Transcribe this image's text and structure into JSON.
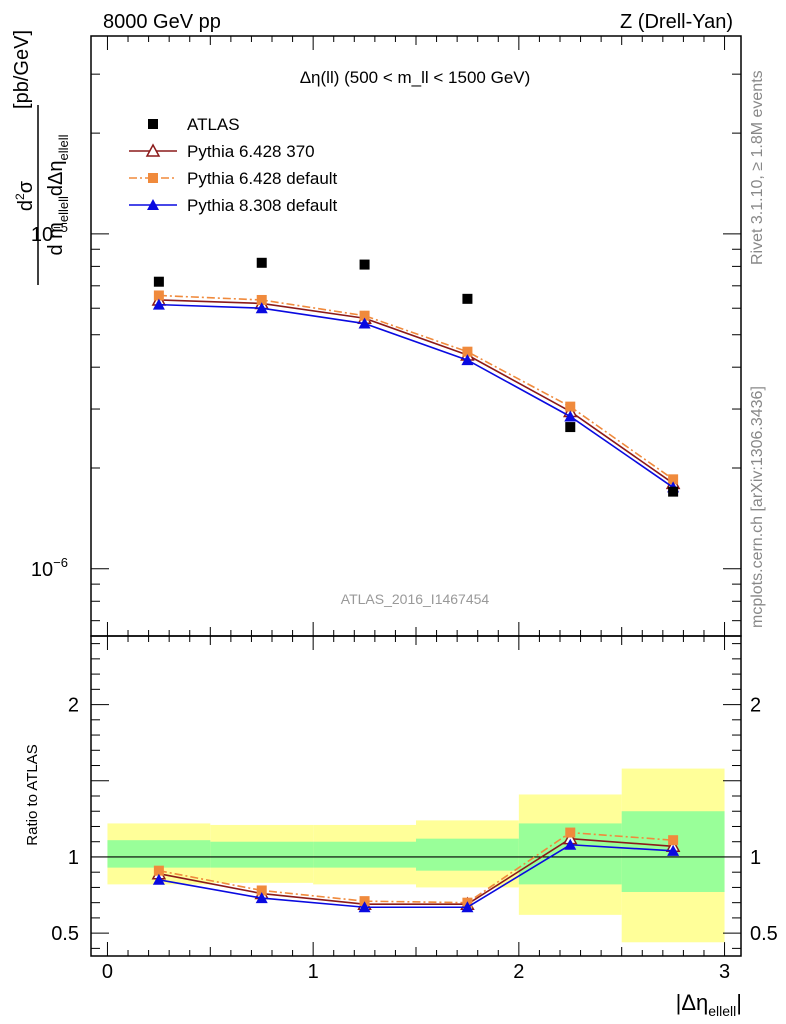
{
  "header": {
    "left": "8000 GeV pp",
    "right": "Z (Drell-Yan)"
  },
  "side_labels": {
    "rivet": "Rivet 3.1.10, ≥ 1.8M events",
    "mcplots": "mcplots.cern.ch [arXiv:1306.3436]"
  },
  "chart_data": {
    "type": "line",
    "title": "Δη(ll) (500 < m_ll < 1500 GeV)",
    "analysis_label": "ATLAS_2016_I1467454",
    "xlabel": "|Δη_ellell|",
    "ylabel": "d²σ / d m_ellell dΔη_ellell [pb/GeV]",
    "ratio_ylabel": "Ratio to ATLAS",
    "xlim": [
      -0.08,
      3.08
    ],
    "ylim": [
      6.3e-07,
      3.9e-05
    ],
    "yscale": "log",
    "ratio_ylim": [
      0.35,
      2.45
    ],
    "x_ticks": [
      "0",
      "1",
      "2",
      "3"
    ],
    "y_ticks": [
      "10^-5",
      "10^-6"
    ],
    "ratio_ticks": [
      "2",
      "1",
      "0.5"
    ],
    "legend_position": "top-left",
    "x": [
      0.25,
      0.75,
      1.25,
      1.75,
      2.25,
      2.75
    ],
    "bin_edges": [
      0,
      0.5,
      1.0,
      1.5,
      2.0,
      2.5,
      3.0
    ],
    "data_series": {
      "name": "ATLAS",
      "color": "#000000",
      "values": [
        7.2e-06,
        8.2e-06,
        8.1e-06,
        6.4e-06,
        2.65e-06,
        1.7e-06
      ]
    },
    "series": [
      {
        "name": "Pythia 6.428 370",
        "color": "#8b1a1a",
        "marker": "open-triangle",
        "dash": "solid",
        "values": [
          6.35e-06,
          6.2e-06,
          5.6e-06,
          4.35e-06,
          2.95e-06,
          1.8e-06
        ],
        "ratio": [
          0.89,
          0.76,
          0.69,
          0.69,
          1.12,
          1.07
        ]
      },
      {
        "name": "Pythia 6.428 default",
        "color": "#f08a3c",
        "marker": "filled-square",
        "dash": "dashdot",
        "values": [
          6.55e-06,
          6.35e-06,
          5.7e-06,
          4.45e-06,
          3.05e-06,
          1.85e-06
        ],
        "ratio": [
          0.91,
          0.78,
          0.71,
          0.7,
          1.16,
          1.11
        ]
      },
      {
        "name": "Pythia 8.308 default",
        "color": "#0a0ae0",
        "marker": "filled-triangle",
        "dash": "solid",
        "values": [
          6.15e-06,
          6e-06,
          5.4e-06,
          4.2e-06,
          2.85e-06,
          1.75e-06
        ],
        "ratio": [
          0.85,
          0.73,
          0.67,
          0.67,
          1.08,
          1.04
        ]
      }
    ],
    "uncertainty_bands": {
      "inner_color": "#99ff99",
      "outer_color": "#ffff99",
      "inner": [
        [
          0.93,
          1.11
        ],
        [
          0.93,
          1.1
        ],
        [
          0.93,
          1.1
        ],
        [
          0.91,
          1.12
        ],
        [
          0.82,
          1.22
        ],
        [
          0.77,
          1.3
        ]
      ],
      "outer": [
        [
          0.82,
          1.22
        ],
        [
          0.83,
          1.21
        ],
        [
          0.82,
          1.21
        ],
        [
          0.8,
          1.24
        ],
        [
          0.62,
          1.41
        ],
        [
          0.44,
          1.58
        ]
      ]
    }
  }
}
